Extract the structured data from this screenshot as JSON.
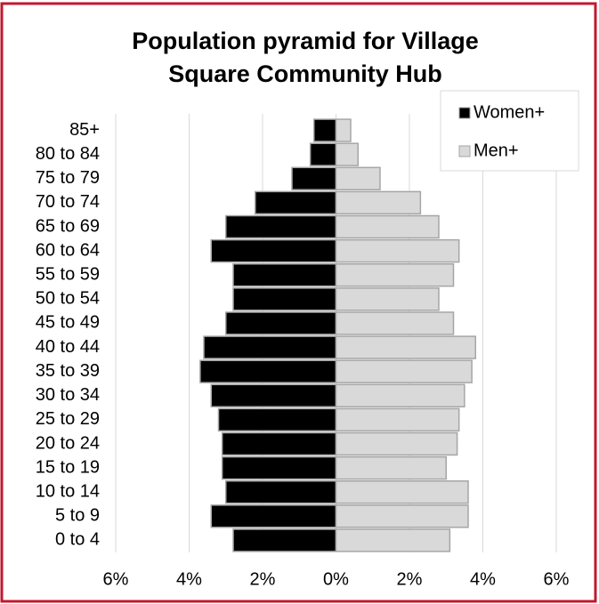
{
  "chart_data": {
    "type": "pyramid",
    "title": "Population pyramid for Village Square Community Hub",
    "categories": [
      "85+",
      "80 to 84",
      "75 to 79",
      "70 to 74",
      "65 to 69",
      "60 to 64",
      "55 to 59",
      "50 to 54",
      "45 to 49",
      "40 to 44",
      "35 to 39",
      "30 to 34",
      "25 to 29",
      "20 to 24",
      "15 to 19",
      "10 to 14",
      "5 to 9",
      "0 to 4"
    ],
    "series": [
      {
        "name": "Women+",
        "color": "#000000",
        "values": [
          -0.6,
          -0.7,
          -1.2,
          -2.2,
          -3.0,
          -3.4,
          -2.8,
          -2.8,
          -3.0,
          -3.6,
          -3.7,
          -3.4,
          -3.2,
          -3.1,
          -3.1,
          -3.0,
          -3.4,
          -2.8
        ]
      },
      {
        "name": "Men+",
        "color": "#d9d9d9",
        "values": [
          0.4,
          0.6,
          1.2,
          2.3,
          2.8,
          3.35,
          3.2,
          2.8,
          3.2,
          3.8,
          3.7,
          3.5,
          3.35,
          3.3,
          3.0,
          3.6,
          3.6,
          3.1
        ]
      }
    ],
    "xlim": [
      -6,
      6
    ],
    "xticks": [
      {
        "value": -6,
        "label": "6%"
      },
      {
        "value": -4,
        "label": "4%"
      },
      {
        "value": -2,
        "label": "2%"
      },
      {
        "value": 0,
        "label": "0%"
      },
      {
        "value": 2,
        "label": "2%"
      },
      {
        "value": 4,
        "label": "4%"
      },
      {
        "value": 6,
        "label": "6%"
      }
    ],
    "grid": true,
    "legend": "upper right"
  }
}
